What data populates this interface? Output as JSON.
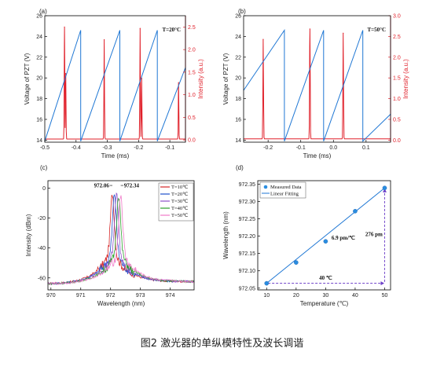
{
  "caption": "图2 激光器的单纵模特性及波长调谐",
  "colors": {
    "pzt": "#1f77d4",
    "intensity": "#e0202a",
    "axis_right": "#e0202a"
  },
  "chart_data": [
    {
      "panel": "(a)",
      "type": "line",
      "annotation": "T=20°C",
      "xlabel": "Time (ms)",
      "ylabel_left": "Voltage of PZT (V)",
      "ylabel_right": "Intensity (a.u.)",
      "xlim": [
        -0.5,
        -0.05
      ],
      "ylim_left": [
        13.8,
        26
      ],
      "ylim_right": [
        -0.05,
        2.75
      ],
      "xticks": [
        -0.5,
        -0.4,
        -0.3,
        -0.2,
        -0.1
      ],
      "yticks_left": [
        14,
        16,
        18,
        20,
        22,
        24,
        26
      ],
      "yticks_right": [
        0.0,
        0.5,
        1.0,
        1.5,
        2.0,
        2.5
      ],
      "series": [
        {
          "role": "pzt",
          "x": [
            -0.5,
            -0.385,
            -0.385,
            -0.26,
            -0.26,
            -0.14,
            -0.14,
            -0.05
          ],
          "y": [
            13.9,
            24.6,
            13.9,
            24.6,
            13.9,
            24.6,
            13.9,
            21.0
          ]
        },
        {
          "role": "intensity",
          "peaks": [
            {
              "x": -0.437,
              "h": 2.48
            },
            {
              "x": -0.433,
              "h": 1.45
            },
            {
              "x": -0.31,
              "h": 2.2
            },
            {
              "x": -0.195,
              "h": 2.45
            },
            {
              "x": -0.19,
              "h": 1.35
            },
            {
              "x": -0.072,
              "h": 1.25
            }
          ],
          "baseline": 0.02
        }
      ]
    },
    {
      "panel": "(b)",
      "type": "line",
      "annotation": "T=50°C",
      "xlabel": "Time (ms)",
      "ylabel_left": "Voltage of PZT (V)",
      "ylabel_right": "Intensity (a.u.)",
      "xlim": [
        -0.275,
        0.175
      ],
      "ylim_left": [
        13.8,
        26
      ],
      "ylim_right": [
        -0.05,
        3.0
      ],
      "xticks": [
        -0.2,
        -0.1,
        0.0,
        0.1
      ],
      "yticks_left": [
        14,
        16,
        18,
        20,
        22,
        24,
        26
      ],
      "yticks_right": [
        0.0,
        0.5,
        1.0,
        1.5,
        2.0,
        2.5,
        3.0
      ],
      "series": [
        {
          "role": "pzt",
          "x": [
            -0.275,
            -0.15,
            -0.15,
            -0.03,
            -0.03,
            0.09,
            0.09,
            0.175
          ],
          "y": [
            18.8,
            24.6,
            13.9,
            24.6,
            13.9,
            24.6,
            13.9,
            16.5
          ]
        },
        {
          "role": "intensity",
          "peaks": [
            {
              "x": -0.215,
              "h": 2.4
            },
            {
              "x": -0.072,
              "h": 2.65
            },
            {
              "x": 0.03,
              "h": 2.55
            }
          ],
          "baseline": 0.03
        }
      ]
    },
    {
      "panel": "(c)",
      "type": "line",
      "xlabel": "Wavelength (nm)",
      "ylabel": "Intensity (dBm)",
      "xlim": [
        969.9,
        974.8
      ],
      "ylim": [
        -68,
        5
      ],
      "xticks": [
        970,
        971,
        972,
        973,
        974
      ],
      "yticks": [
        0,
        -20,
        -40,
        -60
      ],
      "annotations": [
        "972.06",
        "972.34"
      ],
      "series": [
        {
          "name": "T=10℃",
          "color": "#d62728",
          "center": 972.06
        },
        {
          "name": "T=20℃",
          "color": "#1f4fcc",
          "center": 972.13
        },
        {
          "name": "T=30℃",
          "color": "#8c52c8",
          "center": 972.2
        },
        {
          "name": "T=40℃",
          "color": "#2ca02c",
          "center": 972.27
        },
        {
          "name": "T=50℃",
          "color": "#f07ac8",
          "center": 972.34
        }
      ]
    },
    {
      "panel": "(d)",
      "type": "scatter",
      "xlabel": "Temperature (℃)",
      "ylabel": "Wavelength (nm)",
      "xlim": [
        7,
        52
      ],
      "ylim": [
        972.045,
        972.36
      ],
      "xticks": [
        10,
        20,
        30,
        40,
        50
      ],
      "yticks": [
        972.05,
        972.1,
        972.15,
        972.2,
        972.25,
        972.3,
        972.35
      ],
      "x": [
        10,
        20,
        30,
        40,
        50
      ],
      "y": [
        972.064,
        972.124,
        972.185,
        972.272,
        972.339
      ],
      "fit": {
        "x": [
          10,
          50
        ],
        "y": [
          972.064,
          972.339
        ]
      },
      "legend": [
        "Measured Data",
        "Linear Fitting"
      ],
      "annotations": {
        "slope": "6.9 pm/℃",
        "dx": "40 ℃",
        "dy": "276 pm"
      }
    }
  ]
}
